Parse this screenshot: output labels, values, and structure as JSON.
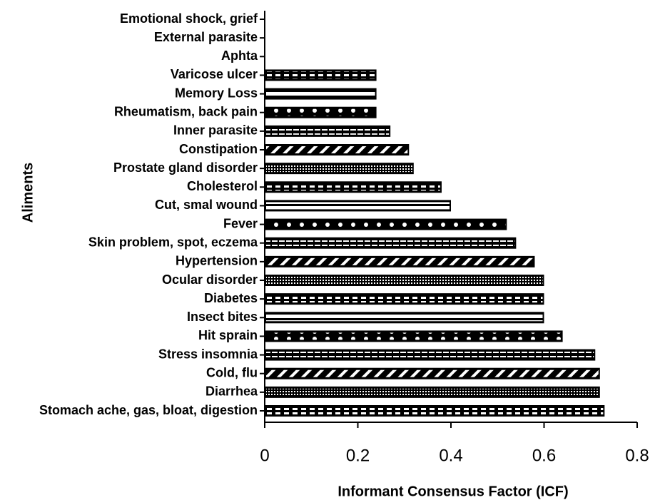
{
  "chart_data": {
    "type": "barh",
    "xlabel": "Informant Consensus Factor (ICF)",
    "ylabel": "Aliments",
    "categories": [
      "Emotional shock, grief",
      "External parasite",
      "Aphta",
      "Varicose ulcer",
      "Memory Loss",
      "Rheumatism, back pain",
      "Inner parasite",
      "Constipation",
      "Prostate gland disorder",
      "Cholesterol",
      "Cut, smal wound",
      "Fever",
      "Skin problem, spot, eczema",
      "Hypertension",
      "Ocular disorder",
      "Diabetes",
      "Insect bites",
      "Hit sprain",
      "Stress insomnia",
      "Cold, flu",
      "Diarrhea",
      "Stomach ache, gas, bloat, digestion"
    ],
    "values": [
      0,
      0,
      0,
      0.24,
      0.24,
      0.24,
      0.27,
      0.31,
      0.32,
      0.38,
      0.4,
      0.52,
      0.54,
      0.58,
      0.6,
      0.6,
      0.6,
      0.64,
      0.71,
      0.72,
      0.72,
      0.73
    ],
    "color": "#000000",
    "xlim": [
      0,
      0.8
    ],
    "xticks": [
      0,
      0.2,
      0.4,
      0.6,
      0.8
    ]
  }
}
